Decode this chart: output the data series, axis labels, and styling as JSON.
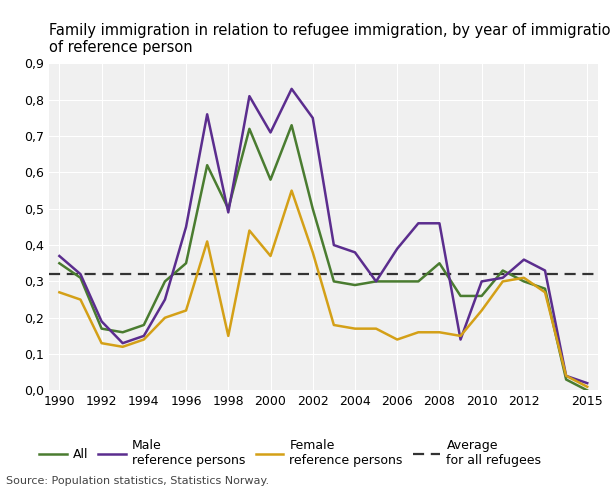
{
  "title_line1": "Family immigration in relation to refugee immigration, by year of immigration",
  "title_line2": "of reference person",
  "source": "Source: Population statistics, Statistics Norway.",
  "years": [
    1990,
    1991,
    1992,
    1993,
    1994,
    1995,
    1996,
    1997,
    1998,
    1999,
    2000,
    2001,
    2002,
    2003,
    2004,
    2005,
    2006,
    2007,
    2008,
    2009,
    2010,
    2011,
    2012,
    2013,
    2014,
    2015
  ],
  "all": [
    0.35,
    0.31,
    0.17,
    0.16,
    0.18,
    0.3,
    0.35,
    0.62,
    0.5,
    0.72,
    0.58,
    0.73,
    0.5,
    0.3,
    0.29,
    0.3,
    0.3,
    0.3,
    0.35,
    0.26,
    0.26,
    0.33,
    0.3,
    0.28,
    0.03,
    0.0
  ],
  "male": [
    0.37,
    0.32,
    0.19,
    0.13,
    0.15,
    0.25,
    0.45,
    0.76,
    0.49,
    0.81,
    0.71,
    0.83,
    0.75,
    0.4,
    0.38,
    0.3,
    0.39,
    0.46,
    0.46,
    0.14,
    0.3,
    0.31,
    0.36,
    0.33,
    0.04,
    0.02
  ],
  "female": [
    0.27,
    0.25,
    0.13,
    0.12,
    0.14,
    0.2,
    0.22,
    0.41,
    0.15,
    0.44,
    0.37,
    0.55,
    0.38,
    0.18,
    0.17,
    0.17,
    0.14,
    0.16,
    0.16,
    0.15,
    0.22,
    0.3,
    0.31,
    0.27,
    0.04,
    0.01
  ],
  "average": 0.32,
  "color_all": "#4a7c30",
  "color_male": "#5b2d8e",
  "color_female": "#d4a017",
  "color_average": "#333333",
  "bg_color": "#ffffff",
  "plot_bg": "#f0f0f0",
  "ylim": [
    0.0,
    0.9
  ],
  "yticks": [
    0.0,
    0.1,
    0.2,
    0.3,
    0.4,
    0.5,
    0.6,
    0.7,
    0.8,
    0.9
  ],
  "xticks": [
    1990,
    1992,
    1994,
    1996,
    1998,
    2000,
    2002,
    2004,
    2006,
    2008,
    2010,
    2012,
    2015
  ],
  "xlim": [
    1989.5,
    2015.5
  ],
  "title_fontsize": 10.5,
  "tick_fontsize": 9,
  "source_fontsize": 8,
  "legend_fontsize": 9,
  "line_width": 1.8,
  "legend_entries": [
    "All",
    "Male\nreference persons",
    "Female\nreference persons",
    "Average\nfor all refugees"
  ]
}
